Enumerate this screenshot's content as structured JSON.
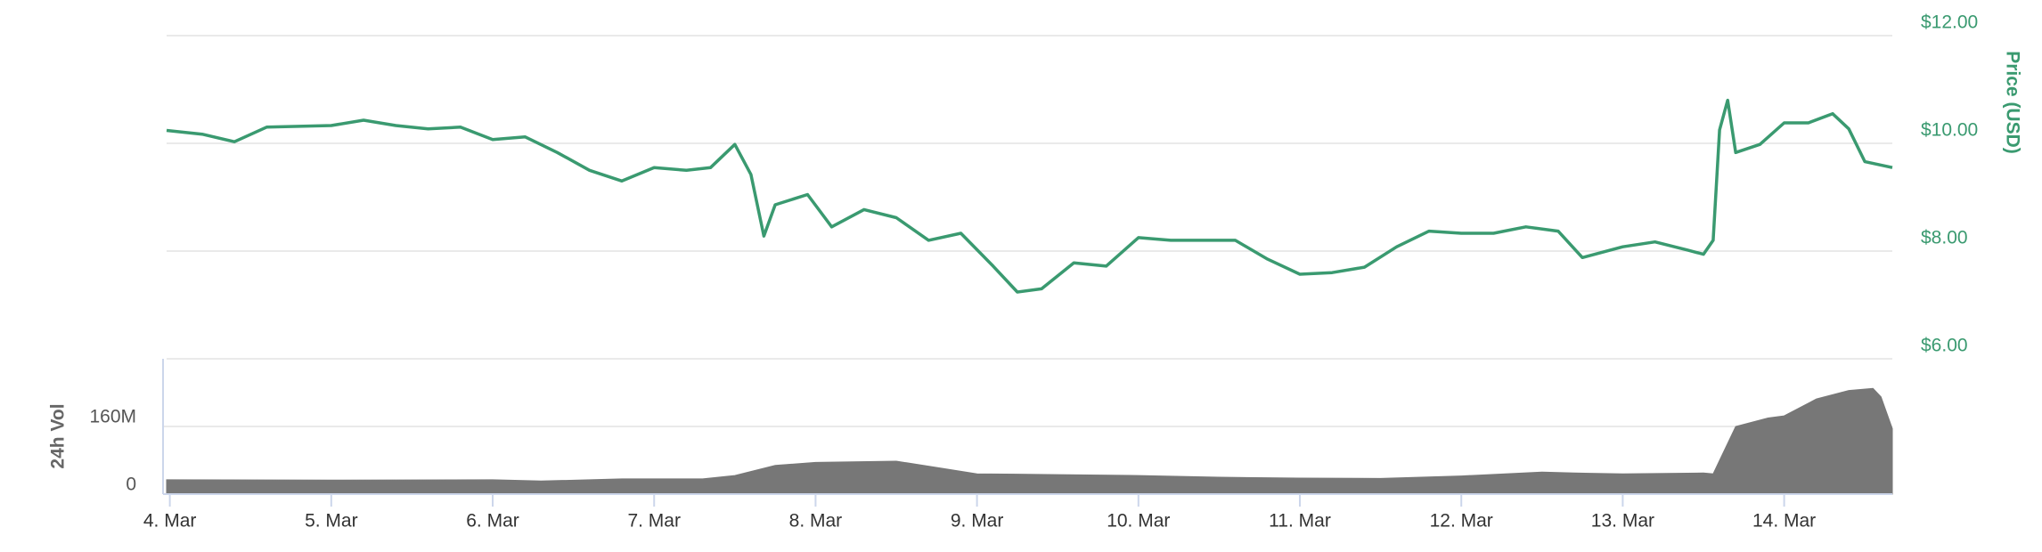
{
  "chart_data": [
    {
      "type": "line",
      "y_label": "Price (USD)",
      "color": "#3a9a70",
      "y_axis_side": "right",
      "grid": true,
      "x": [
        3.98,
        4.2,
        4.4,
        4.6,
        5.0,
        5.2,
        5.4,
        5.6,
        5.8,
        6.0,
        6.2,
        6.4,
        6.6,
        6.8,
        7.0,
        7.2,
        7.35,
        7.5,
        7.6,
        7.68,
        7.75,
        7.95,
        8.1,
        8.3,
        8.5,
        8.7,
        8.9,
        9.1,
        9.25,
        9.4,
        9.6,
        9.8,
        10.0,
        10.2,
        10.4,
        10.6,
        10.8,
        11.0,
        11.2,
        11.4,
        11.6,
        11.8,
        12.0,
        12.2,
        12.4,
        12.6,
        12.75,
        13.0,
        13.2,
        13.4,
        13.5,
        13.56,
        13.6,
        13.65,
        13.7,
        13.85,
        14.0,
        14.15,
        14.3,
        14.4,
        14.5,
        14.67
      ],
      "values": [
        10.24,
        10.17,
        10.03,
        10.3,
        10.33,
        10.43,
        10.33,
        10.27,
        10.3,
        10.07,
        10.12,
        9.83,
        9.5,
        9.3,
        9.55,
        9.5,
        9.55,
        9.98,
        9.42,
        8.28,
        8.86,
        9.05,
        8.45,
        8.77,
        8.62,
        8.2,
        8.33,
        7.72,
        7.24,
        7.3,
        7.78,
        7.72,
        8.25,
        8.2,
        8.2,
        8.2,
        7.85,
        7.57,
        7.6,
        7.7,
        8.08,
        8.37,
        8.33,
        8.33,
        8.45,
        8.37,
        7.88,
        8.08,
        8.17,
        8.02,
        7.94,
        8.2,
        10.25,
        10.8,
        9.83,
        9.98,
        10.38,
        10.38,
        10.55,
        10.27,
        9.66,
        9.55
      ],
      "xlim": [
        3.98,
        14.67
      ],
      "ylim": [
        6,
        12
      ],
      "yticks": [
        {
          "value": 6,
          "label": "$6.00"
        },
        {
          "value": 8,
          "label": "$8.00"
        },
        {
          "value": 10,
          "label": "$10.00"
        },
        {
          "value": 12,
          "label": "$12.00"
        }
      ]
    },
    {
      "type": "area",
      "y_label": "24h Vol",
      "color": "#777777",
      "y_axis_side": "left",
      "grid": true,
      "x": [
        3.98,
        5.0,
        6.0,
        6.3,
        6.8,
        7.3,
        7.5,
        7.75,
        8.0,
        8.5,
        8.8,
        9.0,
        9.5,
        10.0,
        10.5,
        11.0,
        11.5,
        12.0,
        12.5,
        12.7,
        13.0,
        13.5,
        13.56,
        13.7,
        13.9,
        14.0,
        14.2,
        14.4,
        14.55,
        14.6,
        14.67
      ],
      "values": [
        34000000,
        33000000,
        34000000,
        31000000,
        36000000,
        36000000,
        44000000,
        68000000,
        75000000,
        78000000,
        60000000,
        48000000,
        46000000,
        44000000,
        40000000,
        38000000,
        37000000,
        43000000,
        52000000,
        50000000,
        48000000,
        50000000,
        48000000,
        160000000,
        180000000,
        185000000,
        225000000,
        245000000,
        250000000,
        230000000,
        155000000
      ],
      "xlim": [
        3.98,
        14.67
      ],
      "ylim": [
        0,
        320000000
      ],
      "yticks": [
        0,
        {
          "value": 160000000,
          "label": "160M"
        }
      ],
      "xticks": [
        {
          "value": 4,
          "label": "4. Mar"
        },
        {
          "value": 5,
          "label": "5. Mar"
        },
        {
          "value": 6,
          "label": "6. Mar"
        },
        {
          "value": 7,
          "label": "7. Mar"
        },
        {
          "value": 8,
          "label": "8. Mar"
        },
        {
          "value": 9,
          "label": "9. Mar"
        },
        {
          "value": 10,
          "label": "10. Mar"
        },
        {
          "value": 11,
          "label": "11. Mar"
        },
        {
          "value": 12,
          "label": "12. Mar"
        },
        {
          "value": 13,
          "label": "13. Mar"
        },
        {
          "value": 14,
          "label": "14. Mar"
        }
      ]
    }
  ]
}
